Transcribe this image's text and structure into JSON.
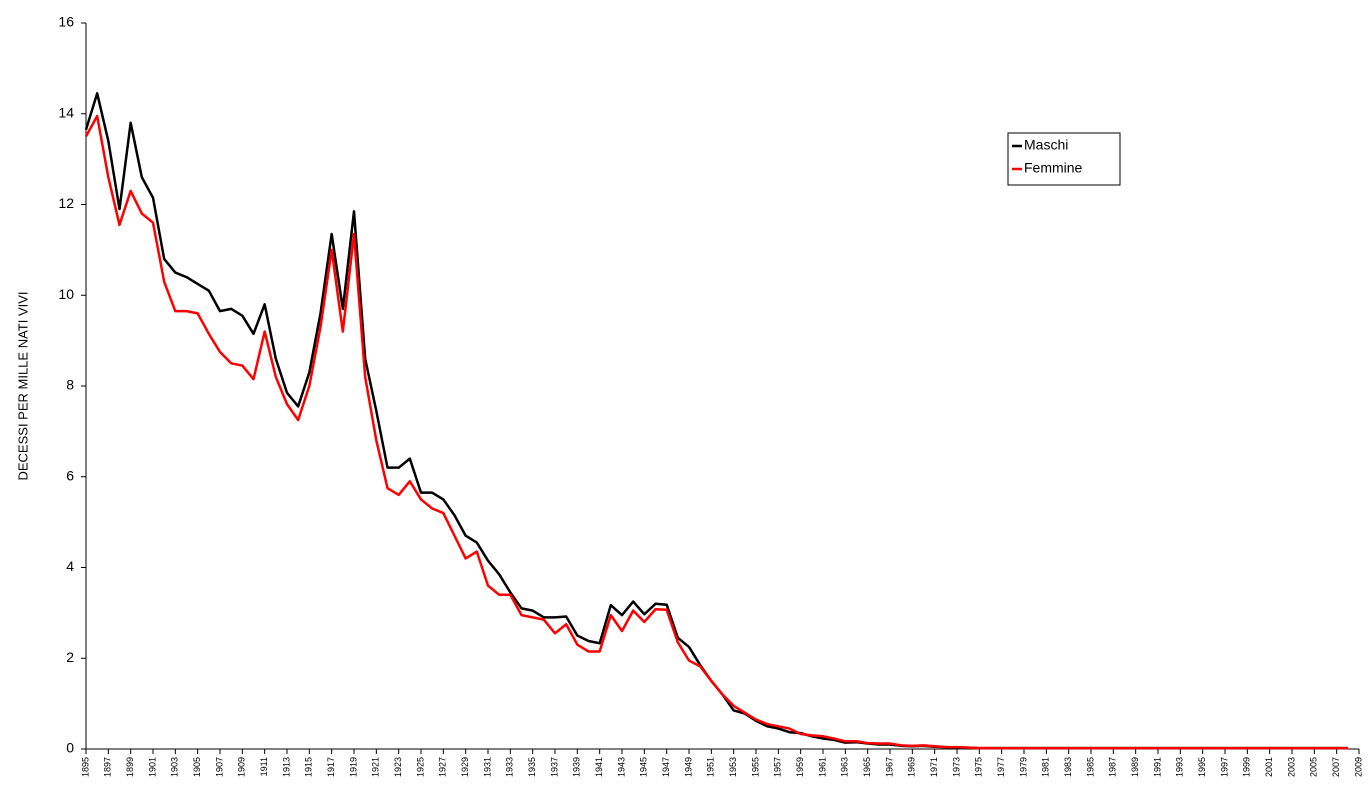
{
  "chart_data": {
    "type": "line",
    "ylabel": "DECESSI PER MILLE NATI VIVI",
    "x": [
      1895,
      1896,
      1897,
      1898,
      1899,
      1900,
      1901,
      1902,
      1903,
      1904,
      1905,
      1906,
      1907,
      1908,
      1909,
      1910,
      1911,
      1912,
      1913,
      1914,
      1915,
      1916,
      1917,
      1918,
      1919,
      1920,
      1921,
      1922,
      1923,
      1924,
      1925,
      1926,
      1927,
      1928,
      1929,
      1930,
      1931,
      1932,
      1933,
      1934,
      1935,
      1936,
      1937,
      1938,
      1939,
      1940,
      1941,
      1942,
      1943,
      1944,
      1945,
      1946,
      1947,
      1948,
      1949,
      1950,
      1951,
      1952,
      1953,
      1954,
      1955,
      1956,
      1957,
      1958,
      1959,
      1960,
      1961,
      1962,
      1963,
      1964,
      1965,
      1966,
      1967,
      1968,
      1969,
      1970,
      1971,
      1972,
      1973,
      1974,
      1975,
      1976,
      1977,
      1978,
      1979,
      1980,
      1981,
      1982,
      1983,
      1984,
      1985,
      1986,
      1987,
      1988,
      1989,
      1990,
      1991,
      1992,
      1993,
      1994,
      1995,
      1996,
      1997,
      1998,
      1999,
      2000,
      2001,
      2002,
      2003,
      2004,
      2005,
      2006,
      2007,
      2008
    ],
    "series": [
      {
        "name": "Maschi",
        "color": "#000000",
        "values": [
          13.65,
          14.45,
          13.4,
          11.9,
          13.8,
          12.6,
          12.15,
          10.8,
          10.5,
          10.4,
          10.25,
          10.1,
          9.65,
          9.7,
          9.55,
          9.15,
          9.8,
          8.6,
          7.85,
          7.55,
          8.3,
          9.6,
          11.35,
          9.7,
          11.85,
          8.6,
          7.45,
          6.2,
          6.2,
          6.4,
          5.65,
          5.65,
          5.5,
          5.15,
          4.7,
          4.55,
          4.15,
          3.85,
          3.45,
          3.1,
          3.05,
          2.9,
          2.9,
          2.92,
          2.5,
          2.38,
          2.33,
          3.17,
          2.95,
          3.25,
          2.97,
          3.2,
          3.18,
          2.45,
          2.25,
          1.85,
          1.5,
          1.2,
          0.85,
          0.78,
          0.62,
          0.5,
          0.45,
          0.37,
          0.35,
          0.28,
          0.23,
          0.2,
          0.14,
          0.15,
          0.12,
          0.1,
          0.1,
          0.07,
          0.06,
          0.07,
          0.05,
          0.04,
          0.03,
          0.03,
          0.02,
          0.02,
          0.02,
          0.02,
          0.02,
          0.02,
          0.02,
          0.02,
          0.02,
          0.02,
          0.02,
          0.02,
          0.02,
          0.02,
          0.02,
          0.02,
          0.02,
          0.02,
          0.02,
          0.02,
          0.02,
          0.02,
          0.02,
          0.02,
          0.02,
          0.02,
          0.02,
          0.02,
          0.02,
          0.02,
          0.02,
          0.02,
          0.02,
          0.02
        ]
      },
      {
        "name": "Femmine",
        "color": "#ff0000",
        "values": [
          13.5,
          13.95,
          12.6,
          11.55,
          12.3,
          11.8,
          11.6,
          10.3,
          9.65,
          9.65,
          9.6,
          9.15,
          8.75,
          8.5,
          8.45,
          8.15,
          9.2,
          8.2,
          7.6,
          7.25,
          8.0,
          9.3,
          11.0,
          9.2,
          11.35,
          8.2,
          6.8,
          5.75,
          5.6,
          5.9,
          5.5,
          5.3,
          5.2,
          4.7,
          4.2,
          4.35,
          3.6,
          3.4,
          3.4,
          2.95,
          2.9,
          2.85,
          2.55,
          2.75,
          2.3,
          2.15,
          2.15,
          2.95,
          2.6,
          3.05,
          2.8,
          3.08,
          3.07,
          2.35,
          1.95,
          1.82,
          1.5,
          1.2,
          0.95,
          0.8,
          0.65,
          0.55,
          0.5,
          0.45,
          0.33,
          0.3,
          0.28,
          0.23,
          0.17,
          0.17,
          0.13,
          0.12,
          0.12,
          0.08,
          0.07,
          0.08,
          0.06,
          0.04,
          0.04,
          0.03,
          0.02,
          0.02,
          0.02,
          0.02,
          0.02,
          0.02,
          0.02,
          0.02,
          0.02,
          0.02,
          0.02,
          0.02,
          0.02,
          0.02,
          0.02,
          0.02,
          0.02,
          0.02,
          0.02,
          0.02,
          0.02,
          0.02,
          0.02,
          0.02,
          0.02,
          0.02,
          0.02,
          0.02,
          0.02,
          0.02,
          0.02,
          0.02,
          0.02,
          0.02
        ]
      }
    ],
    "xlim": [
      1895,
      2009
    ],
    "xticks": [
      1895,
      1897,
      1899,
      1901,
      1903,
      1905,
      1907,
      1909,
      1911,
      1913,
      1915,
      1917,
      1919,
      1921,
      1923,
      1925,
      1927,
      1929,
      1931,
      1933,
      1935,
      1937,
      1939,
      1941,
      1943,
      1945,
      1947,
      1949,
      1951,
      1953,
      1955,
      1957,
      1959,
      1961,
      1963,
      1965,
      1967,
      1969,
      1971,
      1973,
      1975,
      1977,
      1979,
      1981,
      1983,
      1985,
      1987,
      1989,
      1991,
      1993,
      1995,
      1997,
      1999,
      2001,
      2003,
      2005,
      2007,
      2009
    ],
    "ylim": [
      0,
      16
    ],
    "yticks": [
      0,
      2,
      4,
      6,
      8,
      10,
      12,
      14,
      16
    ],
    "grid": false,
    "legend": "upper right"
  }
}
